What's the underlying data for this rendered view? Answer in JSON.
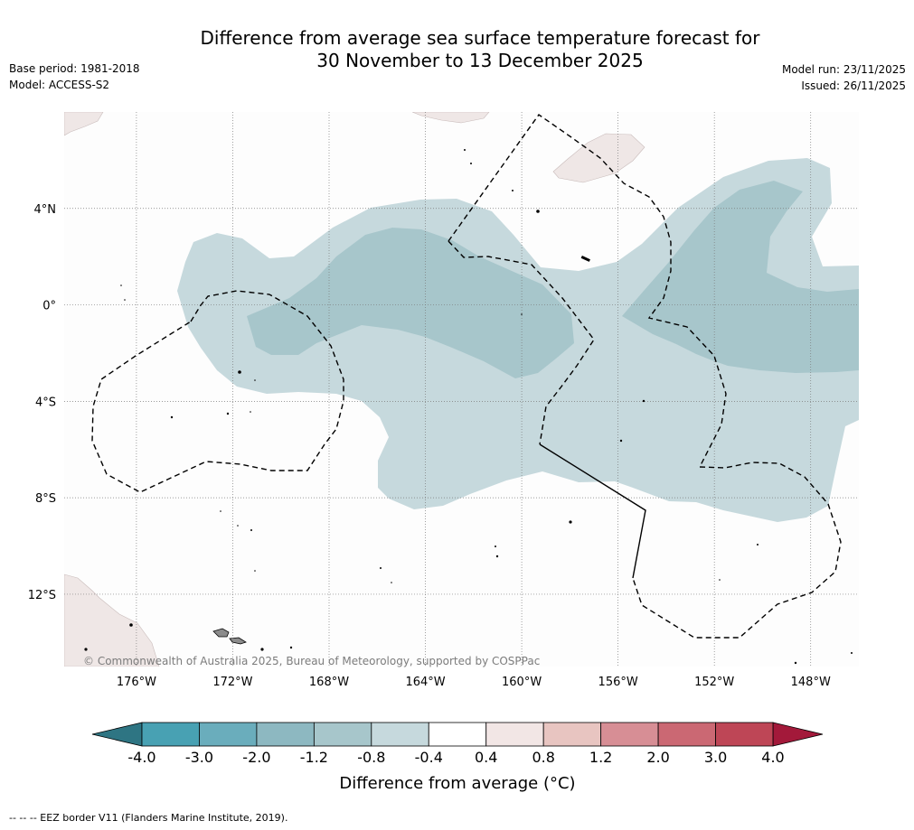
{
  "title": {
    "line1": "Difference from average sea surface temperature forecast for",
    "line2": "30 November to 13 December 2025"
  },
  "meta": {
    "base_period": "Base period: 1981-2018",
    "model": "Model: ACCESS-S2",
    "model_run": "Model run: 23/11/2025",
    "issued": "Issued: 26/11/2025"
  },
  "copyright": "© Commonwealth of Australia 2025, Bureau of Meteorology, supported by COSPPac",
  "footer": "--  --  -- EEZ border V11 (Flanders Marine Institute, 2019).",
  "colors": {
    "ocean": "#fdfdfd",
    "land": "#efe7e6",
    "anomaly_m04": "#c6d9dd",
    "anomaly_m08": "#a7c6cb",
    "eez": "#000000"
  },
  "chart_data": {
    "type": "heatmap",
    "variable": "Sea surface temperature anomaly",
    "units": "°C",
    "x_ticks": [
      {
        "value": -176,
        "label": "176°W"
      },
      {
        "value": -172,
        "label": "172°W"
      },
      {
        "value": -168,
        "label": "168°W"
      },
      {
        "value": -164,
        "label": "164°W"
      },
      {
        "value": -160,
        "label": "160°W"
      },
      {
        "value": -156,
        "label": "156°W"
      },
      {
        "value": -152,
        "label": "152°W"
      },
      {
        "value": -148,
        "label": "148°W"
      }
    ],
    "y_ticks": [
      {
        "value": 4,
        "label": "4°N"
      },
      {
        "value": 0,
        "label": "0°"
      },
      {
        "value": -4,
        "label": "4°S"
      },
      {
        "value": -8,
        "label": "8°S"
      },
      {
        "value": -12,
        "label": "12°S"
      }
    ],
    "xlim": [
      -179,
      -146
    ],
    "ylim": [
      -15,
      8
    ],
    "colorbar": {
      "label": "Difference from average (°C)",
      "boundaries": [
        -4.0,
        -3.0,
        -2.0,
        -1.2,
        -0.8,
        -0.4,
        0.4,
        0.8,
        1.2,
        2.0,
        3.0,
        4.0
      ],
      "tick_labels": [
        "-4.0",
        "-3.0",
        "-2.0",
        "-1.2",
        "-0.8",
        "-0.4",
        "0.4",
        "0.8",
        "1.2",
        "2.0",
        "3.0",
        "4.0"
      ],
      "colors": [
        "#48a1b3",
        "#6aadbc",
        "#8db8c1",
        "#a7c6cb",
        "#c6d9dd",
        "#ffffff",
        "#f2e6e5",
        "#e8c5c1",
        "#d78e95",
        "#cb6873",
        "#be4656"
      ],
      "under_color": "#2e7583",
      "over_color": "#a3193a"
    },
    "regions": [
      {
        "name": "anomaly -0.8 to -0.4",
        "approx_extent": "broad band from about 174°W to 146°W, 1°S to 9°S, extending north to 5°N east of 156°W"
      },
      {
        "name": "anomaly -1.2 to -0.8",
        "approx_extent": "central equatorial tongue 171°W–158°W near 0°–3°S, and eastern area 155°W–146°W, 4°N to 3°S"
      }
    ]
  }
}
